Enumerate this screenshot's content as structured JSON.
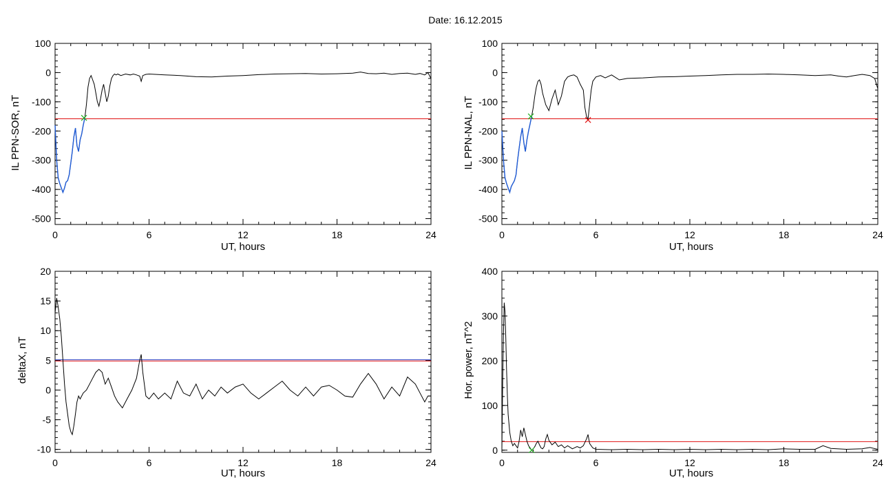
{
  "figure": {
    "title": "Date:  16.12.2015"
  },
  "colors": {
    "curve": "#000000",
    "threshold": "#e01010",
    "highlight": "#1f5bd6",
    "mark_green": "#20b020",
    "mark_red": "#e01010",
    "threshold_secondary": "#3040c0"
  },
  "chart_data": [
    {
      "id": "il-sor",
      "type": "line",
      "xlabel": "UT, hours",
      "ylabel": "IL PPN-SOR, nT",
      "xlim": [
        0,
        24
      ],
      "ylim": [
        -520,
        100
      ],
      "xticks": [
        0,
        6,
        12,
        18,
        24
      ],
      "yticks": [
        100,
        0,
        -100,
        -200,
        -300,
        -400,
        -500
      ],
      "threshold": -158,
      "series": [
        {
          "x": [
            0,
            0.1,
            0.2,
            0.3,
            0.4,
            0.5,
            0.6,
            0.7,
            0.8,
            0.9,
            1.0,
            1.1,
            1.2,
            1.3,
            1.4,
            1.5,
            1.6,
            1.7,
            1.8,
            1.9,
            2.0,
            2.1,
            2.2,
            2.3,
            2.4,
            2.5,
            2.6,
            2.7,
            2.8,
            2.9,
            3.0,
            3.1,
            3.2,
            3.3,
            3.4,
            3.5,
            3.6,
            3.7,
            3.8,
            3.9,
            4.0,
            4.2,
            4.5,
            4.8,
            5.0,
            5.2,
            5.4,
            5.5,
            5.6,
            5.8,
            6,
            7,
            8,
            9,
            10,
            11,
            12,
            13,
            14,
            15,
            16,
            17,
            18,
            19,
            19.5,
            20,
            20.5,
            21,
            21.5,
            22,
            22.5,
            23,
            23.3,
            23.6,
            23.8,
            24
          ],
          "y": [
            -180,
            -300,
            -360,
            -380,
            -395,
            -410,
            -395,
            -375,
            -370,
            -350,
            -310,
            -270,
            -220,
            -190,
            -250,
            -270,
            -230,
            -210,
            -180,
            -155,
            -110,
            -50,
            -20,
            -10,
            -25,
            -40,
            -70,
            -100,
            -115,
            -90,
            -60,
            -40,
            -70,
            -100,
            -80,
            -45,
            -20,
            -10,
            -5,
            -8,
            -5,
            -10,
            -5,
            -8,
            -5,
            -8,
            -12,
            -30,
            -10,
            -6,
            -5,
            -8,
            -10,
            -14,
            -15,
            -12,
            -10,
            -7,
            -5,
            -4,
            -3,
            -5,
            -4,
            -2,
            2,
            -3,
            -4,
            -2,
            -6,
            -3,
            -2,
            -6,
            -3,
            -8,
            0,
            -20
          ]
        }
      ],
      "highlight_x_range": [
        0,
        1.9
      ],
      "marks": [
        {
          "x": 1.85,
          "y": -155,
          "color": "green"
        }
      ]
    },
    {
      "id": "il-nal",
      "type": "line",
      "xlabel": "UT, hours",
      "ylabel": "IL PPN-NAL, nT",
      "xlim": [
        0,
        24
      ],
      "ylim": [
        -520,
        100
      ],
      "xticks": [
        0,
        6,
        12,
        18,
        24
      ],
      "yticks": [
        100,
        0,
        -100,
        -200,
        -300,
        -400,
        -500
      ],
      "threshold": -158,
      "series": [
        {
          "x": [
            0,
            0.1,
            0.2,
            0.3,
            0.4,
            0.5,
            0.6,
            0.7,
            0.8,
            0.9,
            1.0,
            1.1,
            1.2,
            1.3,
            1.4,
            1.5,
            1.6,
            1.7,
            1.8,
            1.9,
            2.0,
            2.1,
            2.2,
            2.3,
            2.4,
            2.5,
            2.6,
            2.8,
            3.0,
            3.2,
            3.4,
            3.6,
            3.8,
            4.0,
            4.2,
            4.4,
            4.6,
            4.8,
            5.0,
            5.2,
            5.3,
            5.4,
            5.5,
            5.6,
            5.7,
            5.8,
            6.0,
            6.3,
            6.6,
            7,
            7.5,
            8,
            9,
            10,
            11,
            12,
            13,
            14,
            15,
            16,
            17,
            18,
            19,
            20,
            21,
            21.5,
            22,
            22.5,
            23,
            23.5,
            23.8,
            24
          ],
          "y": [
            -200,
            -300,
            -360,
            -380,
            -395,
            -410,
            -390,
            -380,
            -370,
            -350,
            -300,
            -260,
            -220,
            -190,
            -240,
            -270,
            -230,
            -200,
            -175,
            -150,
            -120,
            -80,
            -50,
            -30,
            -25,
            -40,
            -70,
            -110,
            -130,
            -90,
            -60,
            -110,
            -80,
            -30,
            -15,
            -10,
            -8,
            -15,
            -40,
            -60,
            -120,
            -150,
            -160,
            -110,
            -60,
            -30,
            -15,
            -10,
            -18,
            -8,
            -25,
            -20,
            -18,
            -15,
            -14,
            -12,
            -10,
            -8,
            -6,
            -6,
            -5,
            -6,
            -8,
            -10,
            -8,
            -12,
            -15,
            -10,
            -6,
            -10,
            -20,
            -55
          ]
        }
      ],
      "highlight_x_range": [
        0,
        1.9
      ],
      "marks": [
        {
          "x": 1.85,
          "y": -150,
          "color": "green"
        },
        {
          "x": 5.5,
          "y": -162,
          "color": "red"
        }
      ]
    },
    {
      "id": "deltax",
      "type": "line",
      "xlabel": "UT, hours",
      "ylabel": "deltaX, nT",
      "xlim": [
        0,
        24
      ],
      "ylim": [
        -10.5,
        20
      ],
      "xticks": [
        0,
        6,
        12,
        18,
        24
      ],
      "yticks": [
        20,
        15,
        10,
        5,
        0,
        -5,
        -10
      ],
      "threshold": 4.9,
      "series": [
        {
          "x": [
            0,
            0.1,
            0.2,
            0.3,
            0.4,
            0.5,
            0.6,
            0.7,
            0.8,
            0.9,
            1.0,
            1.1,
            1.2,
            1.3,
            1.4,
            1.5,
            1.6,
            1.8,
            2.0,
            2.2,
            2.4,
            2.6,
            2.8,
            3.0,
            3.2,
            3.4,
            3.6,
            3.8,
            4.0,
            4.3,
            4.6,
            4.9,
            5.2,
            5.4,
            5.5,
            5.6,
            5.8,
            6.0,
            6.3,
            6.6,
            7.0,
            7.4,
            7.8,
            8.2,
            8.6,
            9.0,
            9.4,
            9.8,
            10.2,
            10.6,
            11,
            11.5,
            12,
            12.5,
            13,
            13.5,
            14,
            14.5,
            15,
            15.5,
            16,
            16.5,
            17,
            17.5,
            18,
            18.5,
            19,
            19.5,
            20,
            20.5,
            21,
            21.5,
            22,
            22.5,
            23,
            23.3,
            23.6,
            23.8,
            24
          ],
          "y": [
            13,
            15.5,
            14,
            12,
            9,
            5,
            1,
            -2,
            -4,
            -6,
            -7,
            -7.5,
            -6,
            -4,
            -2,
            -1,
            -1.5,
            -0.5,
            0,
            1,
            2,
            3,
            3.5,
            3,
            1,
            2,
            0.5,
            -1,
            -2,
            -3,
            -1.5,
            0,
            2,
            5,
            6,
            3,
            -1,
            -1.5,
            -0.5,
            -1.5,
            -0.5,
            -1.5,
            1.5,
            -0.5,
            -1,
            1,
            -1.5,
            0,
            -1,
            0.5,
            -0.5,
            0.5,
            1,
            -0.5,
            -1.5,
            -0.5,
            0.5,
            1.5,
            0,
            -1,
            0.5,
            -1,
            0.5,
            0.8,
            0,
            -1,
            -1.2,
            1,
            2.8,
            1,
            -1.5,
            0.5,
            -1,
            2.2,
            1,
            -0.5,
            -2,
            -1,
            -1
          ]
        }
      ],
      "threshold_secondary": 5.1
    },
    {
      "id": "hor-power",
      "type": "line",
      "xlabel": "UT, hours",
      "ylabel": "Hor. power, nT^2",
      "xlim": [
        0,
        24
      ],
      "ylim": [
        -5,
        400
      ],
      "xticks": [
        0,
        6,
        12,
        18,
        24
      ],
      "yticks": [
        400,
        300,
        200,
        100,
        0
      ],
      "threshold": 19,
      "series": [
        {
          "x": [
            0,
            0.05,
            0.1,
            0.15,
            0.2,
            0.25,
            0.3,
            0.35,
            0.4,
            0.5,
            0.6,
            0.7,
            0.8,
            0.9,
            1.0,
            1.1,
            1.2,
            1.3,
            1.4,
            1.5,
            1.6,
            1.7,
            1.8,
            1.9,
            2.0,
            2.1,
            2.2,
            2.3,
            2.4,
            2.5,
            2.6,
            2.7,
            2.8,
            2.9,
            3.0,
            3.2,
            3.4,
            3.6,
            3.8,
            4.0,
            4.2,
            4.5,
            4.8,
            5.0,
            5.2,
            5.4,
            5.5,
            5.6,
            5.8,
            6.0,
            7,
            8,
            9,
            10,
            11,
            12,
            13,
            14,
            15,
            16,
            17,
            18,
            19,
            20,
            20.5,
            21,
            22,
            23,
            23.5,
            24
          ],
          "y": [
            0,
            150,
            260,
            330,
            310,
            250,
            180,
            120,
            80,
            40,
            20,
            10,
            15,
            10,
            5,
            20,
            45,
            30,
            50,
            35,
            20,
            10,
            5,
            0,
            3,
            8,
            15,
            20,
            12,
            5,
            3,
            8,
            25,
            35,
            22,
            12,
            18,
            8,
            12,
            5,
            10,
            3,
            8,
            5,
            10,
            25,
            35,
            15,
            5,
            2,
            1,
            2,
            1,
            2,
            1,
            2,
            1,
            2,
            1,
            2,
            1,
            3,
            2,
            2,
            10,
            4,
            2,
            3,
            6,
            2
          ]
        }
      ],
      "marks": [
        {
          "x": 1.9,
          "y": 0,
          "color": "green"
        }
      ]
    }
  ]
}
